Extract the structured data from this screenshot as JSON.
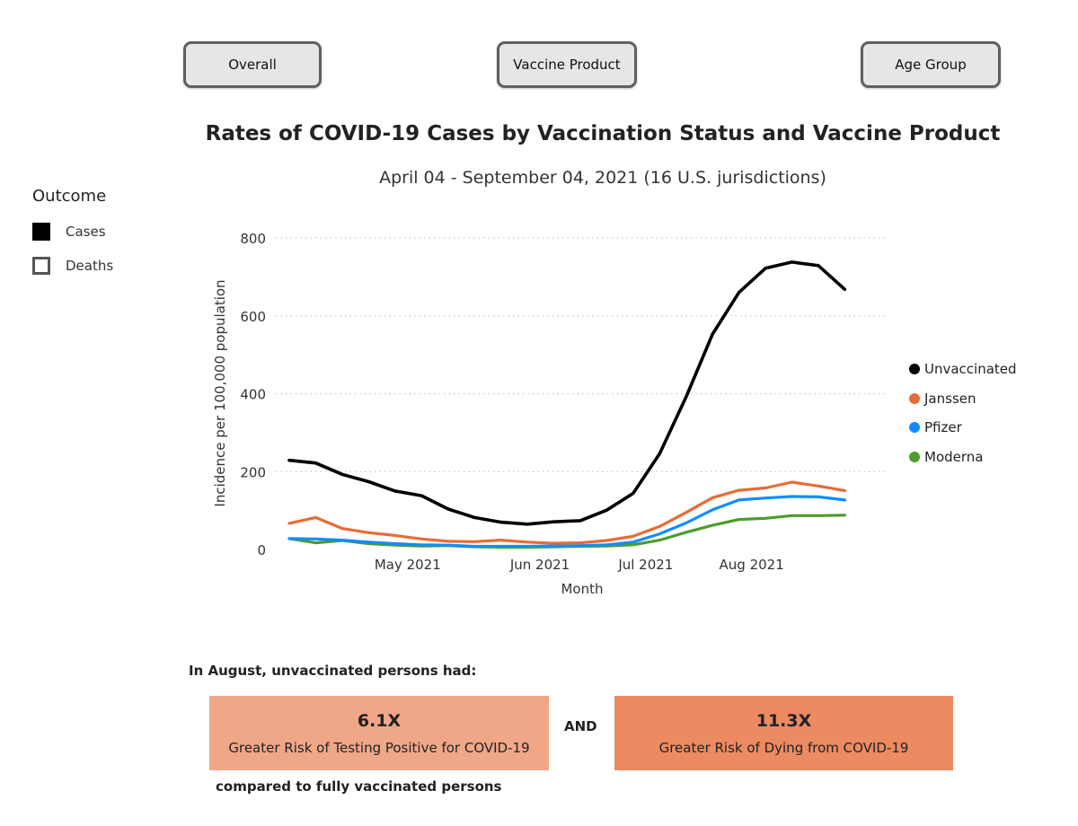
{
  "tabs": [
    {
      "label": "Overall"
    },
    {
      "label": "Vaccine Product"
    },
    {
      "label": "Age Group"
    }
  ],
  "title": "Rates of COVID-19 Cases by Vaccination Status and Vaccine Product",
  "subtitle": "April 04 - September 04, 2021 (16 U.S. jurisdictions)",
  "outcome": {
    "title": "Outcome",
    "items": [
      {
        "label": "Cases",
        "selected": true
      },
      {
        "label": "Deaths",
        "selected": false
      }
    ]
  },
  "chart_data": {
    "type": "line",
    "xlabel": "Month",
    "ylabel": "Incidence per 100,000 population",
    "ylim": [
      0,
      800
    ],
    "yticks": [
      "0",
      "200",
      "400",
      "600",
      "800"
    ],
    "x_tick_labels": [
      "May 2021",
      "Jun 2021",
      "Jul 2021",
      "Aug 2021"
    ],
    "x": [
      "2021-04-04",
      "2021-04-11",
      "2021-04-18",
      "2021-04-25",
      "2021-05-02",
      "2021-05-09",
      "2021-05-16",
      "2021-05-23",
      "2021-05-30",
      "2021-06-06",
      "2021-06-13",
      "2021-06-20",
      "2021-06-27",
      "2021-07-04",
      "2021-07-11",
      "2021-07-18",
      "2021-07-25",
      "2021-08-01",
      "2021-08-08",
      "2021-08-15",
      "2021-08-22",
      "2021-08-29",
      "2021-09-04"
    ],
    "grid": "horizontal dotted",
    "legend_position": "right",
    "series": [
      {
        "name": "Unvaccinated",
        "color": "#000000",
        "values": [
          229,
          222,
          193,
          174,
          150,
          138,
          104,
          82,
          70,
          65,
          71,
          74,
          101,
          144,
          246,
          392,
          553,
          660,
          722,
          738,
          729,
          668,
          668
        ]
      },
      {
        "name": "Janssen",
        "color": "#e66c37",
        "values": [
          67,
          82,
          54,
          43,
          36,
          27,
          21,
          20,
          24,
          19,
          16,
          17,
          23,
          34,
          59,
          95,
          133,
          152,
          158,
          173,
          163,
          151,
          151
        ]
      },
      {
        "name": "Pfizer",
        "color": "#118dff",
        "values": [
          28,
          27,
          24,
          19,
          15,
          12,
          11,
          8,
          8,
          8,
          9,
          10,
          12,
          19,
          40,
          68,
          102,
          127,
          132,
          136,
          135,
          127,
          127
        ]
      },
      {
        "name": "Moderna",
        "color": "#4c9c2a",
        "values": [
          28,
          17,
          23,
          15,
          11,
          9,
          10,
          7,
          6,
          6,
          7,
          8,
          9,
          12,
          24,
          44,
          62,
          77,
          80,
          87,
          87,
          88,
          88
        ]
      }
    ]
  },
  "risk": {
    "intro": "In August, unvaccinated persons had:",
    "cases": {
      "value": "6.1X",
      "label": "Greater Risk of Testing Positive for COVID-19",
      "color": "#f0a788"
    },
    "joiner": "AND",
    "deaths": {
      "value": "11.3X",
      "label": "Greater Risk of Dying from COVID-19",
      "color": "#ec8a61"
    },
    "note": "compared to fully vaccinated persons"
  }
}
